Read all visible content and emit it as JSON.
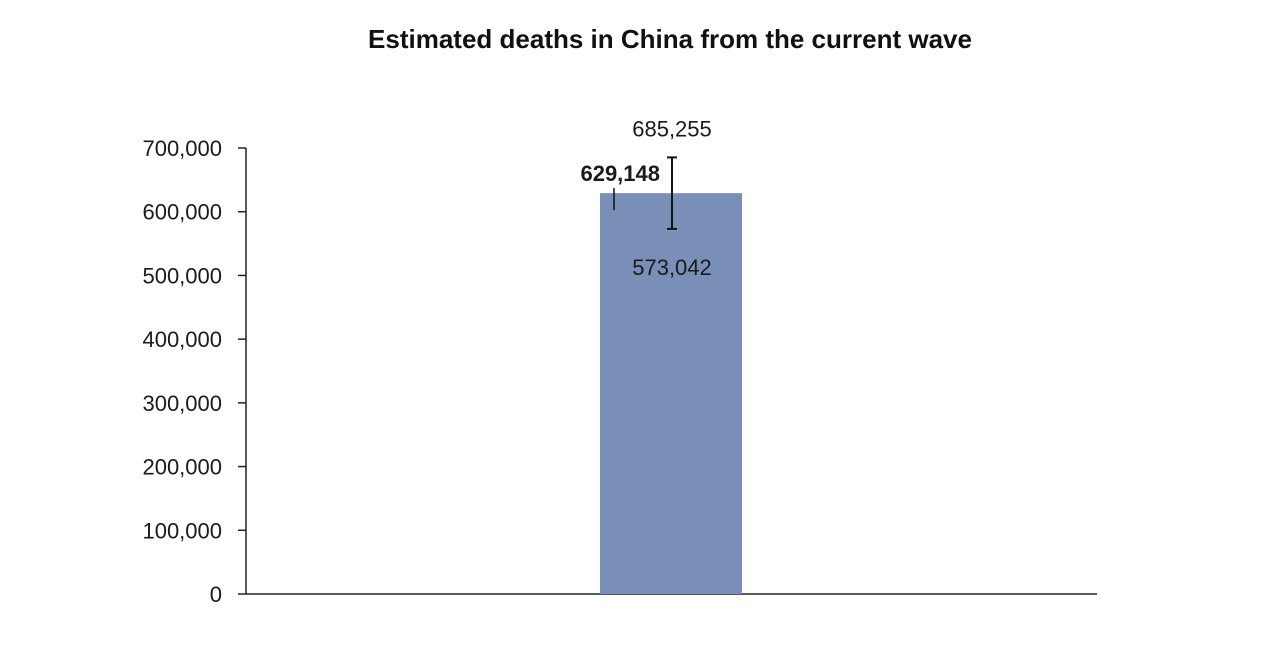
{
  "chart_data": {
    "type": "bar",
    "title": "Estimated deaths in China from the current wave",
    "xlabel": "",
    "ylabel": "",
    "categories": [
      ""
    ],
    "values": [
      629148
    ],
    "value_label": "629,148",
    "error": {
      "upper": 685255,
      "lower": 573042,
      "upper_label": "685,255",
      "lower_label": "573,042"
    },
    "ylim": [
      0,
      700000
    ],
    "yticks": [
      0,
      100000,
      200000,
      300000,
      400000,
      500000,
      600000,
      700000
    ],
    "ytick_labels": [
      "0",
      "100,000",
      "200,000",
      "300,000",
      "400,000",
      "500,000",
      "600,000",
      "700,000"
    ],
    "grid": false,
    "legend": "none",
    "bar_color": "#7a8fb7"
  }
}
